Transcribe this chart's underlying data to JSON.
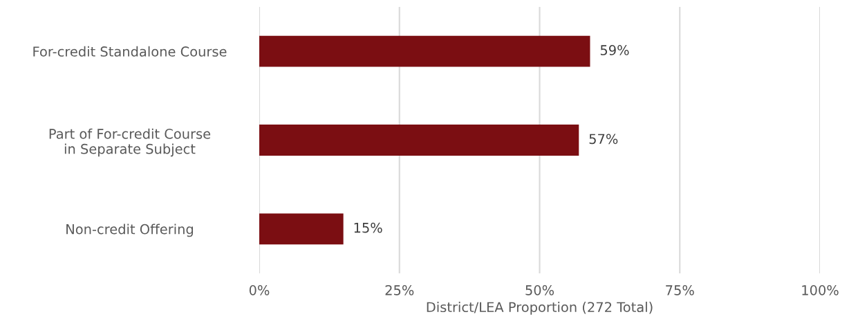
{
  "chart_data": {
    "type": "bar",
    "orientation": "horizontal",
    "xlabel": "District/LEA Proportion (272 Total)",
    "categories": [
      "For-credit Standalone Course",
      "Part of For-credit Course\nin Separate Subject",
      "Non-credit Offering"
    ],
    "values": [
      59,
      57,
      15
    ],
    "color": "#7b0e12",
    "value_labels": [
      "59%",
      "57%",
      "15%"
    ],
    "xlim": [
      0,
      100
    ],
    "xticks": [
      {
        "value": 0,
        "label": "0%"
      },
      {
        "value": 25,
        "label": "25%"
      },
      {
        "value": 50,
        "label": "50%"
      },
      {
        "value": 75,
        "label": "75%"
      },
      {
        "value": 100,
        "label": "100%"
      }
    ],
    "grid": "x",
    "legend": false
  }
}
